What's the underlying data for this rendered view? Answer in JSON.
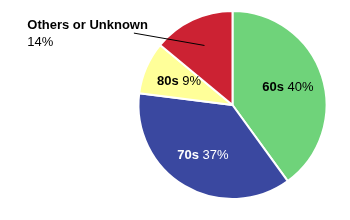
{
  "chart_data": {
    "type": "pie",
    "categories": [
      "60s",
      "70s",
      "80s",
      "Others or Unknown"
    ],
    "values": [
      40,
      37,
      9,
      14
    ],
    "value_labels": [
      "40%",
      "37%",
      "9%",
      "14%"
    ],
    "colors": [
      "#6fd37a",
      "#3a48a0",
      "#ffff99",
      "#cc2233"
    ],
    "data_labels": true
  }
}
